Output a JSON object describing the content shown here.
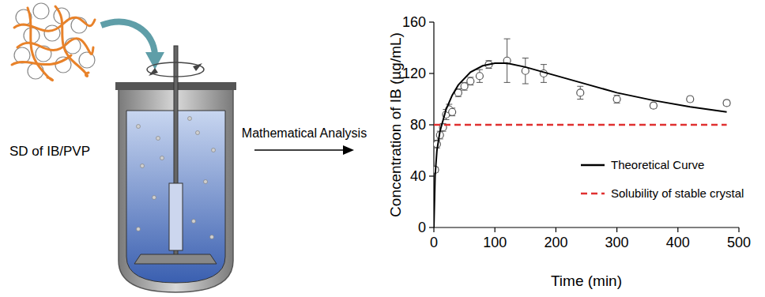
{
  "chart_data": {
    "type": "scatter",
    "x_label": "Time (min)",
    "y_label": "Concentration of IB (µg/mL)",
    "xlim": [
      0,
      500
    ],
    "xticks": [
      0,
      100,
      200,
      300,
      400,
      500
    ],
    "ylim": [
      0,
      160
    ],
    "yticks": [
      0,
      40,
      80,
      120,
      160
    ],
    "grid": false,
    "legend": "lower right",
    "series": [
      {
        "type": "scatter",
        "marker": "circle",
        "color": "#555555",
        "x": [
          2,
          5,
          10,
          15,
          20,
          25,
          30,
          40,
          50,
          60,
          75,
          90,
          120,
          150,
          180,
          240,
          300,
          360,
          420,
          480
        ],
        "values": [
          45,
          65,
          72,
          78,
          88,
          92,
          90,
          105,
          110,
          114,
          118,
          127,
          130,
          122,
          120,
          105,
          100,
          95,
          100,
          97
        ],
        "errors": [
          2,
          3,
          3,
          3,
          4,
          4,
          3,
          3,
          3,
          3,
          5,
          3,
          17,
          10,
          7,
          5,
          3,
          2,
          2,
          2
        ]
      },
      {
        "name": "Theoretical Curve",
        "type": "line",
        "color": "#000000",
        "line_style": "solid",
        "x": [
          0,
          2,
          5,
          10,
          20,
          30,
          40,
          60,
          80,
          100,
          120,
          150,
          180,
          240,
          300,
          360,
          420,
          480
        ],
        "values": [
          0,
          40,
          60,
          75,
          92,
          103,
          111,
          121,
          126,
          128,
          128,
          125,
          121,
          113,
          105,
          99,
          94,
          90
        ]
      },
      {
        "name": "Solubility of stable crystal",
        "type": "line",
        "color": "#e03030",
        "line_style": "dashed",
        "x": [
          0,
          480
        ],
        "values": [
          80,
          80
        ]
      }
    ]
  },
  "diagram": {
    "label": "SD of IB/PVP",
    "arrow_label": "Mathematical Analysis"
  }
}
